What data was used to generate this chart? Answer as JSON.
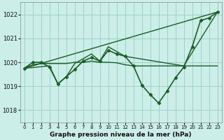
{
  "background_color": "#cceee8",
  "grid_color": "#99ccbb",
  "line_color": "#1a5c28",
  "marker_color": "#1a5c28",
  "xlabel": "Graphe pression niveau de la mer (hPa)",
  "xlim": [
    -0.5,
    23.5
  ],
  "ylim": [
    1017.5,
    1022.5
  ],
  "yticks": [
    1018,
    1019,
    1020,
    1021,
    1022
  ],
  "xticks": [
    0,
    1,
    2,
    3,
    4,
    5,
    6,
    7,
    8,
    9,
    10,
    11,
    12,
    13,
    14,
    15,
    16,
    17,
    18,
    19,
    20,
    21,
    22,
    23
  ],
  "series": [
    {
      "x": [
        0,
        1,
        2,
        3,
        4,
        5,
        6,
        7,
        8,
        9,
        10,
        11,
        12,
        13,
        14,
        15,
        16,
        17,
        18,
        19,
        20,
        21,
        22,
        23
      ],
      "y": [
        1019.75,
        1020.0,
        1020.0,
        1019.8,
        1019.1,
        1019.4,
        1019.7,
        1020.05,
        1020.2,
        1020.05,
        1020.5,
        1020.35,
        1020.25,
        1019.85,
        1019.05,
        1018.65,
        1018.3,
        1018.8,
        1019.35,
        1019.8,
        1020.65,
        1021.75,
        1021.85,
        1022.1
      ],
      "marker": "D",
      "markersize": 2.5,
      "linewidth": 1.2
    },
    {
      "x": [
        0,
        1,
        2,
        3,
        4,
        5,
        6,
        7,
        8,
        9,
        10,
        11,
        12,
        13,
        14,
        15,
        16,
        17,
        18,
        19,
        20,
        21,
        22,
        23
      ],
      "y": [
        1019.75,
        1019.9,
        1019.95,
        1019.95,
        1019.95,
        1019.95,
        1020.0,
        1020.0,
        1020.05,
        1020.0,
        1020.0,
        1019.98,
        1019.9,
        1019.85,
        1019.85,
        1019.85,
        1019.85,
        1019.85,
        1019.85,
        1019.85,
        1019.85,
        1019.85,
        1019.85,
        1019.85
      ],
      "marker": null,
      "markersize": 0,
      "linewidth": 1.0
    },
    {
      "x": [
        0,
        23
      ],
      "y": [
        1019.75,
        1022.1
      ],
      "marker": null,
      "markersize": 0,
      "linewidth": 1.0
    },
    {
      "x": [
        0,
        3,
        4,
        5,
        6,
        7,
        8,
        9,
        10,
        11,
        12,
        19,
        23
      ],
      "y": [
        1019.75,
        1019.85,
        1019.1,
        1019.4,
        1019.95,
        1020.15,
        1020.35,
        1020.05,
        1020.65,
        1020.45,
        1020.25,
        1019.85,
        1022.1
      ],
      "marker": null,
      "markersize": 0,
      "linewidth": 1.0
    }
  ]
}
